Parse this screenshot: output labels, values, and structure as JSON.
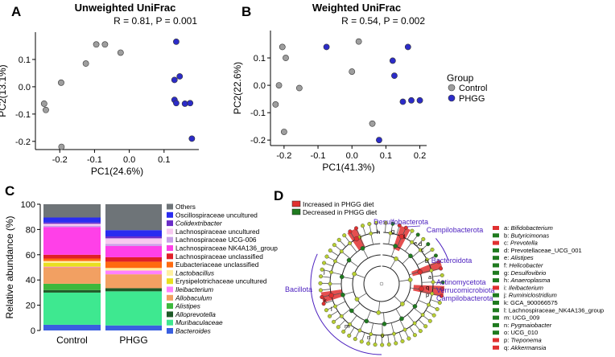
{
  "chart_data": [
    {
      "panel": "A",
      "type": "scatter",
      "title": "Unweighted UniFrac",
      "annotation": "R = 0.81, P = 0.001",
      "xlabel": "PC1(24.6%)",
      "ylabel": "PC2(13.1%)",
      "xlim": [
        -0.27,
        0.2
      ],
      "ylim": [
        -0.23,
        0.2
      ],
      "xticks": [
        -0.2,
        -0.1,
        0.0,
        0.1
      ],
      "xtick_labels": [
        "-0.2",
        "-0.1",
        "0.0",
        "0.1"
      ],
      "yticks": [
        -0.2,
        -0.1,
        0.0,
        0.1
      ],
      "ytick_labels": [
        "-0.2",
        "-0.1",
        "0.0",
        "0.1"
      ],
      "series": [
        {
          "name": "Control",
          "color": "#9e9e9e",
          "points": [
            [
              -0.245,
              -0.062
            ],
            [
              -0.24,
              -0.085
            ],
            [
              -0.196,
              0.015
            ],
            [
              -0.195,
              -0.22
            ],
            [
              -0.125,
              0.085
            ],
            [
              -0.095,
              0.155
            ],
            [
              -0.07,
              0.155
            ],
            [
              -0.025,
              0.125
            ]
          ]
        },
        {
          "name": "PHGG",
          "color": "#2c2cc8",
          "points": [
            [
              0.135,
              0.165
            ],
            [
              0.13,
              0.025
            ],
            [
              0.145,
              0.038
            ],
            [
              0.13,
              -0.048
            ],
            [
              0.135,
              -0.06
            ],
            [
              0.16,
              -0.062
            ],
            [
              0.175,
              -0.06
            ],
            [
              0.18,
              -0.19
            ]
          ]
        }
      ]
    },
    {
      "panel": "B",
      "type": "scatter",
      "title": "Weighted UniFrac",
      "annotation": "R = 0.54, P = 0.002",
      "xlabel": "PC1(41.3%)",
      "ylabel": "PC2(22.6%)",
      "xlim": [
        -0.24,
        0.22
      ],
      "ylim": [
        -0.22,
        0.2
      ],
      "xticks": [
        -0.2,
        -0.1,
        0.0,
        0.1,
        0.2
      ],
      "xtick_labels": [
        "-0.2",
        "-0.1",
        "0.0",
        "0.1",
        "0.2"
      ],
      "yticks": [
        -0.2,
        -0.1,
        0.0,
        0.1
      ],
      "ytick_labels": [
        "-0.2",
        "-0.1",
        "0.0",
        "0.1"
      ],
      "legend_title": "Group",
      "series": [
        {
          "name": "Control",
          "color": "#9e9e9e",
          "points": [
            [
              -0.205,
              0.14
            ],
            [
              -0.195,
              0.1
            ],
            [
              -0.215,
              0.0
            ],
            [
              -0.155,
              -0.01
            ],
            [
              -0.225,
              -0.07
            ],
            [
              -0.2,
              -0.17
            ],
            [
              0.0,
              0.05
            ],
            [
              0.02,
              0.16
            ],
            [
              0.06,
              -0.14
            ]
          ]
        },
        {
          "name": "PHGG",
          "color": "#2c2cc8",
          "points": [
            [
              -0.075,
              0.14
            ],
            [
              0.12,
              0.09
            ],
            [
              0.125,
              0.035
            ],
            [
              0.165,
              0.14
            ],
            [
              0.15,
              -0.06
            ],
            [
              0.175,
              -0.055
            ],
            [
              0.2,
              -0.055
            ],
            [
              0.08,
              -0.2
            ]
          ]
        }
      ]
    },
    {
      "panel": "C",
      "type": "bar",
      "stacked": true,
      "ylabel": "Relative abundance (%)",
      "ylim": [
        0,
        100
      ],
      "yticks": [
        0,
        20,
        40,
        60,
        80,
        100
      ],
      "ytick_labels": [
        "0",
        "20",
        "40",
        "60",
        "80",
        "100"
      ],
      "categories": [
        "Control",
        "PHGG"
      ],
      "series": [
        {
          "name": "Bacteroides",
          "italic": true,
          "color": "#3a5fe0",
          "values": [
            4.5,
            4
          ]
        },
        {
          "name": "Muribaculaceae",
          "italic": true,
          "color": "#3ee890",
          "values": [
            25.5,
            27
          ]
        },
        {
          "name": "Alloprevotella",
          "italic": true,
          "color": "#1e5a28",
          "values": [
            2,
            2.5
          ]
        },
        {
          "name": "Alistipes",
          "italic": true,
          "color": "#3db83c",
          "values": [
            5,
            0
          ]
        },
        {
          "name": "Allobaculum",
          "italic": true,
          "color": "#f2a062",
          "values": [
            13,
            11
          ]
        },
        {
          "name": "Ileibacterium",
          "italic": true,
          "color": "#ff80ff",
          "values": [
            0.5,
            3
          ]
        },
        {
          "name": "Erysipelotrichaceae uncultured",
          "italic": false,
          "color": "#e8e020",
          "values": [
            3,
            0
          ]
        },
        {
          "name": "Lactobacillus",
          "italic": true,
          "color": "#fff0a0",
          "values": [
            1.5,
            2
          ]
        },
        {
          "name": "Eubacteriaceae unclassified",
          "italic": false,
          "color": "#ff6a10",
          "values": [
            2,
            5
          ]
        },
        {
          "name": "Lachnospiraceae unclassified",
          "italic": false,
          "color": "#e02028",
          "values": [
            3,
            3.5
          ]
        },
        {
          "name": "Lachnospiraceae NK4A136_group",
          "italic": false,
          "color": "#ff40e8",
          "values": [
            22,
            9
          ]
        },
        {
          "name": "Lachnospiraceae UCG-006",
          "italic": false,
          "color": "#c8a0e8",
          "values": [
            1,
            1.5
          ]
        },
        {
          "name": "Lachnospiraceae uncultured",
          "italic": false,
          "color": "#f8c8f0",
          "values": [
            1.5,
            4.5
          ]
        },
        {
          "name": "Colidextribacter",
          "italic": true,
          "color": "#6a2cc8",
          "values": [
            1,
            1.5
          ]
        },
        {
          "name": "Oscillospiraceae uncultured",
          "italic": false,
          "color": "#2a2cf0",
          "values": [
            4,
            5
          ]
        },
        {
          "name": "Others",
          "italic": false,
          "color": "#6e7478",
          "values": [
            10.5,
            20.5
          ]
        }
      ]
    },
    {
      "panel": "D",
      "type": "cladogram",
      "legend": [
        {
          "label": "Increased in PHGG diet",
          "color": "#e03030"
        },
        {
          "label": "Decreased in PHGG diet",
          "color": "#1f7a1f"
        }
      ],
      "clade_labels": [
        "Desulfobacterota",
        "Campilobacterota",
        "Bacteroidota",
        "Actinomycetota",
        "Verrucomicrobiota",
        "Campilobacterota",
        "Bacillota"
      ],
      "node_letters": [
        "a",
        "b",
        "c",
        "d",
        "e",
        "f",
        "g",
        "h",
        "i",
        "j",
        "k",
        "l",
        "m",
        "n",
        "o",
        "p",
        "q"
      ],
      "taxa": [
        {
          "key": "a",
          "name": "Bifidobacterium",
          "italic": true,
          "group": "increased"
        },
        {
          "key": "b",
          "name": "Butyricimonas",
          "italic": true,
          "group": "decreased"
        },
        {
          "key": "c",
          "name": "Prevotella",
          "italic": true,
          "group": "increased"
        },
        {
          "key": "d",
          "name": "Prevotellaceae_UCG_001",
          "italic": false,
          "group": "decreased"
        },
        {
          "key": "e",
          "name": "Alistipes",
          "italic": true,
          "group": "decreased"
        },
        {
          "key": "f",
          "name": "Helicobacter",
          "italic": true,
          "group": "decreased"
        },
        {
          "key": "g",
          "name": "Desulfovibrio",
          "italic": true,
          "group": "decreased"
        },
        {
          "key": "h",
          "name": "Anaeroplasma",
          "italic": true,
          "group": "decreased"
        },
        {
          "key": "i",
          "name": "Ileibacterium",
          "italic": true,
          "group": "increased"
        },
        {
          "key": "j",
          "name": "Ruminiclostridium",
          "italic": true,
          "group": "decreased"
        },
        {
          "key": "k",
          "name": "GCA_900066575",
          "italic": false,
          "group": "decreased"
        },
        {
          "key": "l",
          "name": "Lachnospiraceae_NK4A136_group",
          "italic": false,
          "group": "decreased"
        },
        {
          "key": "m",
          "name": "UCG_009",
          "italic": false,
          "group": "decreased"
        },
        {
          "key": "n",
          "name": "Pygmaiobacter",
          "italic": true,
          "group": "decreased"
        },
        {
          "key": "o",
          "name": "UCG_010",
          "italic": false,
          "group": "decreased"
        },
        {
          "key": "p",
          "name": "Treponema",
          "italic": true,
          "group": "increased"
        },
        {
          "key": "q",
          "name": "Akkermansia",
          "italic": true,
          "group": "increased"
        }
      ]
    }
  ]
}
